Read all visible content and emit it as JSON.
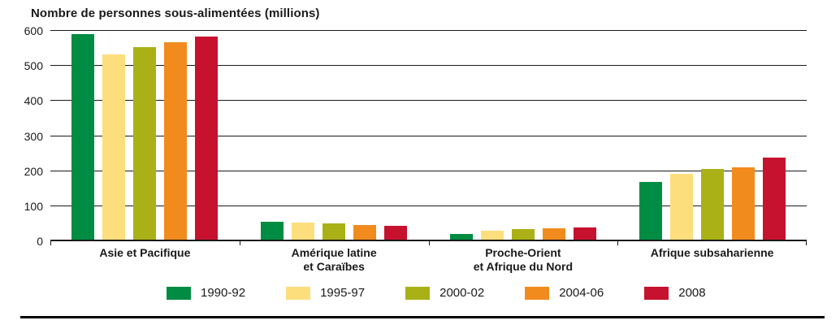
{
  "chart_data": {
    "type": "bar",
    "title": "Nombre de personnes sous-alimentées (millions)",
    "categories": [
      [
        "Asie et Pacifique"
      ],
      [
        "Amérique latine",
        "et Caraïbes"
      ],
      [
        "Proche-Orient",
        "et Afrique du Nord"
      ],
      [
        "Afrique subsaharienne"
      ]
    ],
    "series": [
      {
        "name": "1990-92",
        "color": "#008C42",
        "values": [
          590,
          55,
          20,
          170
        ]
      },
      {
        "name": "1995-97",
        "color": "#FDDE7D",
        "values": [
          532,
          53,
          31,
          193
        ]
      },
      {
        "name": "2000-02",
        "color": "#A9B117",
        "values": [
          554,
          50,
          35,
          206
        ]
      },
      {
        "name": "2004-06",
        "color": "#F28B1E",
        "values": [
          567,
          46,
          37,
          212
        ]
      },
      {
        "name": "2008",
        "color": "#C6122F",
        "values": [
          583,
          45,
          40,
          239
        ]
      }
    ],
    "ylim": [
      0,
      600
    ],
    "yticks": [
      0,
      100,
      200,
      300,
      400,
      500,
      600
    ],
    "grid": "horizontal",
    "legend_position": "bottom",
    "axis_color": "#1a1a1a"
  }
}
